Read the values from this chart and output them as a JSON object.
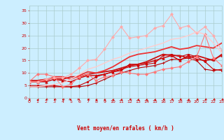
{
  "bg_color": "#cceeff",
  "grid_color": "#aacccc",
  "xlabel": "Vent moyen/en rafales ( km/h )",
  "xlabel_color": "#cc0000",
  "ylim": [
    0,
    37
  ],
  "xlim": [
    0,
    23
  ],
  "yticks": [
    0,
    5,
    10,
    15,
    20,
    25,
    30,
    35
  ],
  "xticks": [
    0,
    1,
    2,
    3,
    4,
    5,
    6,
    7,
    8,
    9,
    10,
    11,
    12,
    13,
    14,
    15,
    16,
    17,
    18,
    19,
    20,
    21,
    22,
    23
  ],
  "lines": [
    {
      "x": [
        0,
        1,
        2,
        3,
        4,
        5,
        6,
        7,
        8,
        9,
        10,
        11,
        12,
        13,
        14,
        15,
        16,
        17,
        18,
        19,
        20,
        21,
        22,
        23
      ],
      "y": [
        4.5,
        4.5,
        4.5,
        4.5,
        4.5,
        4.5,
        4.5,
        5.0,
        6.0,
        7.5,
        9.0,
        10.0,
        11.0,
        12.0,
        12.5,
        13.0,
        14.0,
        15.5,
        15.5,
        16.0,
        15.0,
        11.5,
        11.0,
        11.5
      ],
      "color": "#bb0000",
      "lw": 0.8,
      "marker": "+",
      "ms": 2.5,
      "alpha": 1.0
    },
    {
      "x": [
        0,
        1,
        2,
        3,
        4,
        5,
        6,
        7,
        8,
        9,
        10,
        11,
        12,
        13,
        14,
        15,
        16,
        17,
        18,
        19,
        20,
        21,
        22,
        23
      ],
      "y": [
        5.0,
        5.0,
        5.0,
        5.0,
        4.5,
        4.5,
        5.0,
        6.5,
        8.5,
        9.5,
        10.5,
        11.5,
        12.5,
        13.0,
        13.5,
        14.0,
        17.0,
        17.5,
        16.5,
        17.5,
        16.5,
        14.5,
        11.5,
        11.0
      ],
      "color": "#cc0000",
      "lw": 0.8,
      "marker": "s",
      "ms": 1.8,
      "alpha": 1.0
    },
    {
      "x": [
        0,
        1,
        2,
        3,
        4,
        5,
        6,
        7,
        8,
        9,
        10,
        11,
        12,
        13,
        14,
        15,
        16,
        17,
        18,
        19,
        20,
        21,
        22,
        23
      ],
      "y": [
        6.5,
        6.5,
        6.5,
        7.5,
        7.0,
        6.5,
        8.0,
        9.0,
        9.0,
        9.5,
        10.5,
        11.0,
        13.5,
        13.5,
        14.0,
        15.0,
        16.0,
        17.0,
        15.0,
        17.0,
        15.5,
        15.0,
        15.5,
        17.0
      ],
      "color": "#cc0000",
      "lw": 1.0,
      "marker": "^",
      "ms": 2.5,
      "alpha": 1.0
    },
    {
      "x": [
        0,
        1,
        2,
        3,
        4,
        5,
        6,
        7,
        8,
        9,
        10,
        11,
        12,
        13,
        14,
        15,
        16,
        17,
        18,
        19,
        20,
        21,
        22,
        23
      ],
      "y": [
        7.0,
        7.0,
        7.5,
        8.0,
        7.5,
        8.5,
        8.5,
        9.5,
        10.0,
        10.5,
        11.0,
        12.0,
        13.0,
        13.5,
        14.5,
        16.0,
        17.5,
        17.0,
        17.0,
        16.0,
        17.0,
        16.0,
        15.0,
        17.5
      ],
      "color": "#cc1111",
      "lw": 1.3,
      "marker": null,
      "ms": 0,
      "alpha": 1.0
    },
    {
      "x": [
        0,
        1,
        2,
        3,
        4,
        5,
        6,
        7,
        8,
        9,
        10,
        11,
        12,
        13,
        14,
        15,
        16,
        17,
        18,
        19,
        20,
        21,
        22,
        23
      ],
      "y": [
        6.5,
        6.5,
        7.0,
        8.5,
        8.5,
        7.5,
        9.0,
        10.5,
        10.0,
        11.0,
        12.5,
        14.5,
        16.5,
        17.5,
        18.0,
        18.5,
        19.5,
        20.5,
        19.5,
        20.0,
        21.0,
        20.5,
        20.0,
        22.0
      ],
      "color": "#ee3333",
      "lw": 1.3,
      "marker": null,
      "ms": 0,
      "alpha": 1.0
    },
    {
      "x": [
        0,
        1,
        2,
        3,
        4,
        5,
        6,
        7,
        8,
        9,
        10,
        11,
        12,
        13,
        14,
        15,
        16,
        17,
        18,
        19,
        20,
        21,
        22,
        23
      ],
      "y": [
        6.5,
        9.5,
        9.5,
        8.5,
        4.5,
        5.5,
        8.5,
        9.5,
        7.0,
        8.5,
        9.0,
        10.5,
        10.0,
        9.5,
        9.5,
        10.5,
        11.5,
        12.0,
        12.5,
        14.5,
        16.5,
        25.5,
        16.0,
        13.0
      ],
      "color": "#ff7777",
      "lw": 0.8,
      "marker": "D",
      "ms": 2.0,
      "alpha": 1.0
    },
    {
      "x": [
        0,
        1,
        2,
        3,
        4,
        5,
        6,
        7,
        8,
        9,
        10,
        11,
        12,
        13,
        14,
        15,
        16,
        17,
        18,
        19,
        20,
        21,
        22,
        23
      ],
      "y": [
        6.5,
        6.5,
        7.5,
        8.0,
        8.0,
        9.5,
        12.0,
        15.0,
        15.5,
        19.5,
        24.5,
        28.5,
        24.0,
        24.5,
        25.0,
        28.0,
        29.0,
        33.5,
        28.0,
        29.0,
        26.0,
        28.5,
        25.0,
        19.0
      ],
      "color": "#ffaaaa",
      "lw": 0.8,
      "marker": "D",
      "ms": 2.0,
      "alpha": 1.0
    },
    {
      "x": [
        0,
        1,
        2,
        3,
        4,
        5,
        6,
        7,
        8,
        9,
        10,
        11,
        12,
        13,
        14,
        15,
        16,
        17,
        18,
        19,
        20,
        21,
        22,
        23
      ],
      "y": [
        4.5,
        4.5,
        5.0,
        5.5,
        6.0,
        7.5,
        9.5,
        11.5,
        12.5,
        14.0,
        15.5,
        16.5,
        18.0,
        19.0,
        20.0,
        21.0,
        22.0,
        23.5,
        24.0,
        25.0,
        26.5,
        25.5,
        22.0,
        18.0
      ],
      "color": "#ffcccc",
      "lw": 1.0,
      "marker": null,
      "ms": 0,
      "alpha": 1.0
    }
  ],
  "tick_label_color": "#cc0000",
  "tick_label_size": 4.5,
  "arrow_directions": [
    270,
    270,
    315,
    315,
    315,
    45,
    45,
    315,
    270,
    270,
    270,
    270,
    315,
    270,
    270,
    270,
    315,
    315,
    315,
    270,
    315,
    315,
    315,
    315
  ]
}
